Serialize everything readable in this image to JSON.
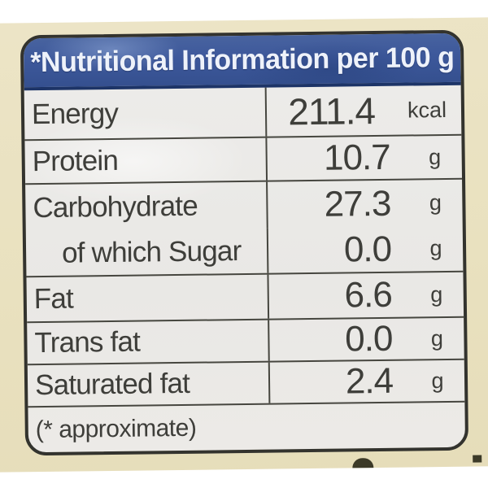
{
  "colors": {
    "page_background": "#ffffff",
    "sticker_cream": "#e9e1bf",
    "card_background": "#eae9e6",
    "card_border": "#33332e",
    "header_blue": "#3d589b",
    "header_text": "#eef2fa",
    "grid_line": "#46463f",
    "body_text": "#3e3e3a"
  },
  "label": {
    "header": {
      "title": "*Nutritional Information per 100 g"
    },
    "table": {
      "rows": [
        {
          "name": "Energy",
          "value": "211.4",
          "unit": "kcal"
        },
        {
          "name": "Protein",
          "value": "10.7",
          "unit": "g"
        },
        {
          "name": "Carbohydrate",
          "value": "27.3",
          "unit": "g"
        },
        {
          "name": "of which Sugar",
          "value": "0.0",
          "unit": "g"
        },
        {
          "name": "Fat",
          "value": "6.6",
          "unit": "g"
        },
        {
          "name": "Trans fat",
          "value": "0.0",
          "unit": "g"
        },
        {
          "name": "Saturated fat",
          "value": "2.4",
          "unit": "g"
        }
      ],
      "footnote": "(* approximate)"
    }
  }
}
